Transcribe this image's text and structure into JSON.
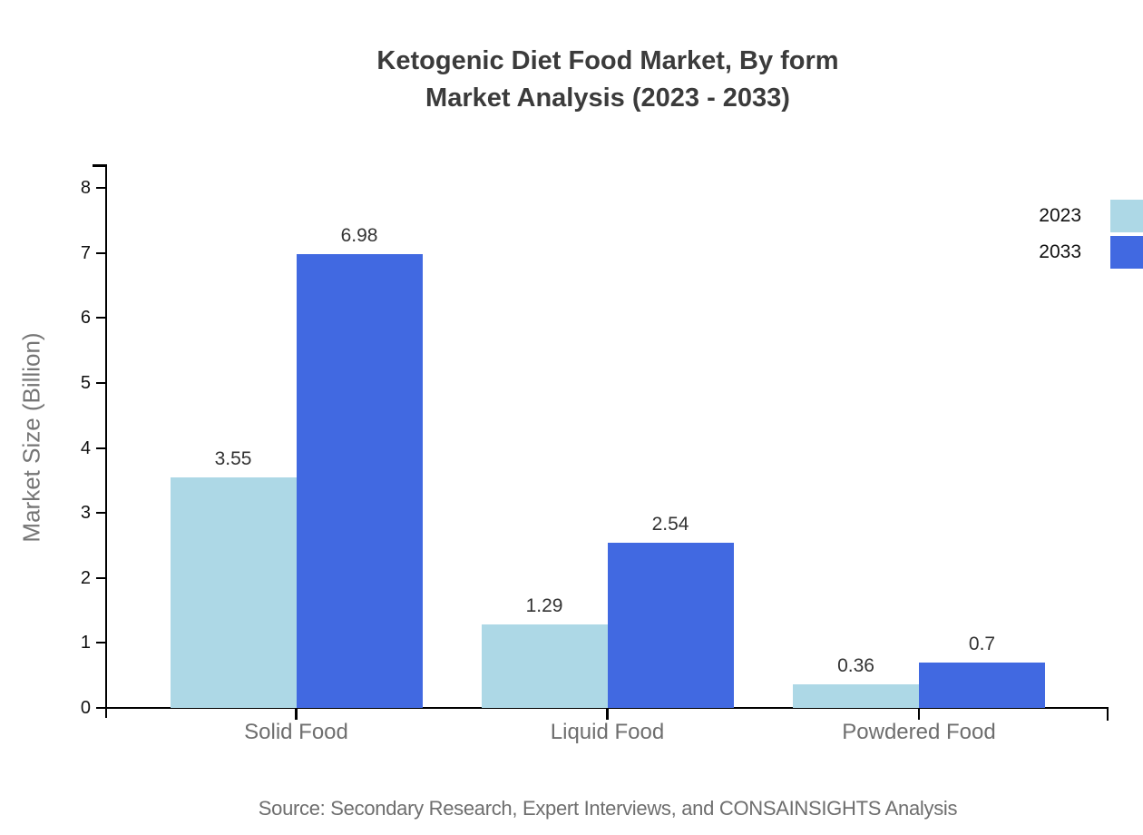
{
  "title": {
    "line1": "Ketogenic Diet Food Market, By form",
    "line2": "Market Analysis (2023 - 2033)"
  },
  "source": "Source: Secondary Research, Expert Interviews, and CONSAINSIGHTS Analysis",
  "chart_data": {
    "type": "bar",
    "title": "Ketogenic Diet Food Market, By form Market Analysis (2023 - 2033)",
    "categories": [
      "Solid Food",
      "Liquid Food",
      "Powdered Food"
    ],
    "series": [
      {
        "name": "2023",
        "color": "#ADD8E6",
        "values": [
          3.55,
          1.29,
          0.36
        ]
      },
      {
        "name": "2033",
        "color": "#4169E1",
        "values": [
          6.98,
          2.54,
          0.7
        ]
      }
    ],
    "xlabel": "",
    "ylabel": "Market Size (Billion)",
    "ylim": [
      0,
      8
    ],
    "yticks": [
      0,
      1,
      2,
      3,
      4,
      5,
      6,
      7,
      8
    ],
    "grid": false,
    "legend_position": "top-right",
    "value_labels": true
  },
  "colors": {
    "axis": "#000000",
    "title_text": "#3b3b3b",
    "value_label_text": "#333333",
    "muted_text": "#6e6e6e",
    "tick_text": "#111111"
  }
}
